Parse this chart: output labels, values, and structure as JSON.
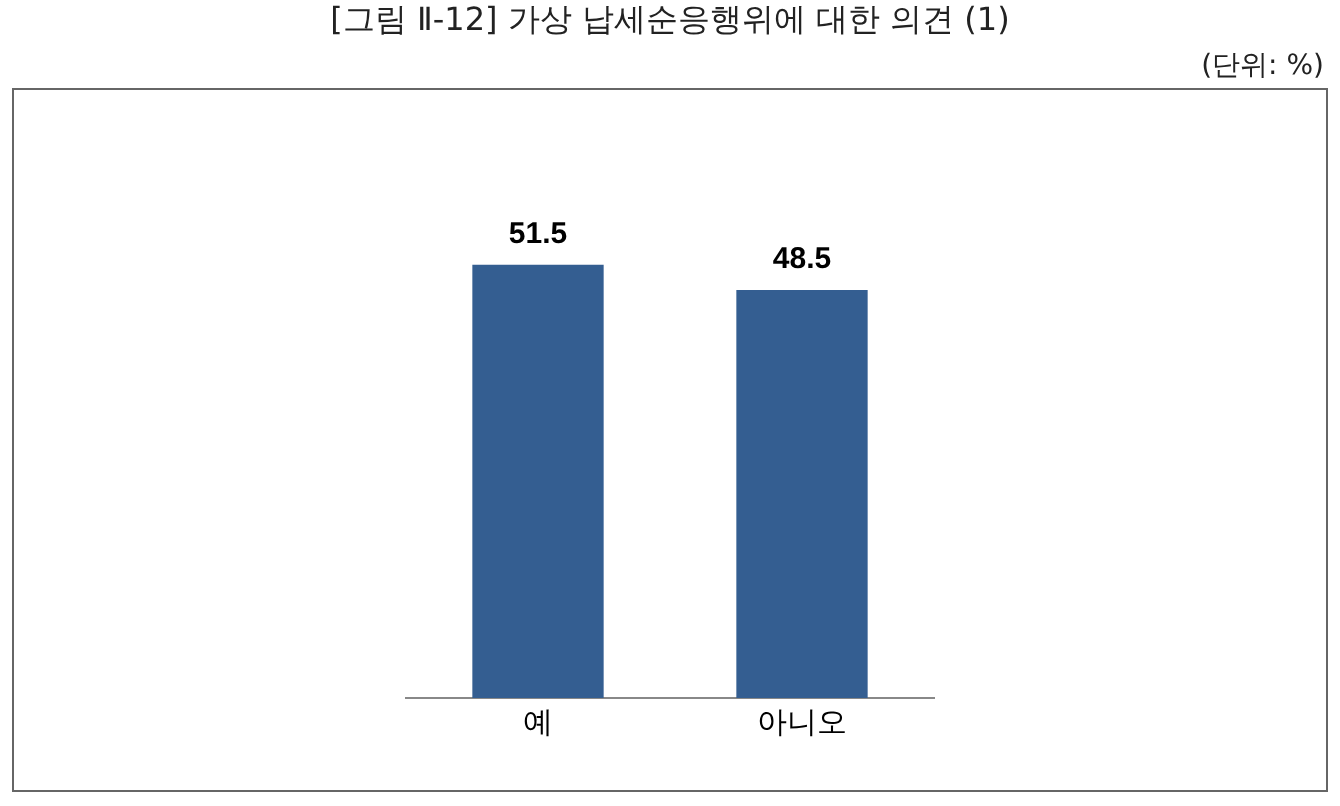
{
  "chart_data": {
    "type": "bar",
    "title": "[그림 Ⅱ-12] 가상 납세순응행위에 대한 의견 (1)",
    "annotations": [
      "(단위: %)"
    ],
    "categories": [
      "예",
      "아니오"
    ],
    "values": [
      51.5,
      48.5
    ],
    "color": "#345e91",
    "data_labels": true,
    "grid": false,
    "legend": false
  }
}
